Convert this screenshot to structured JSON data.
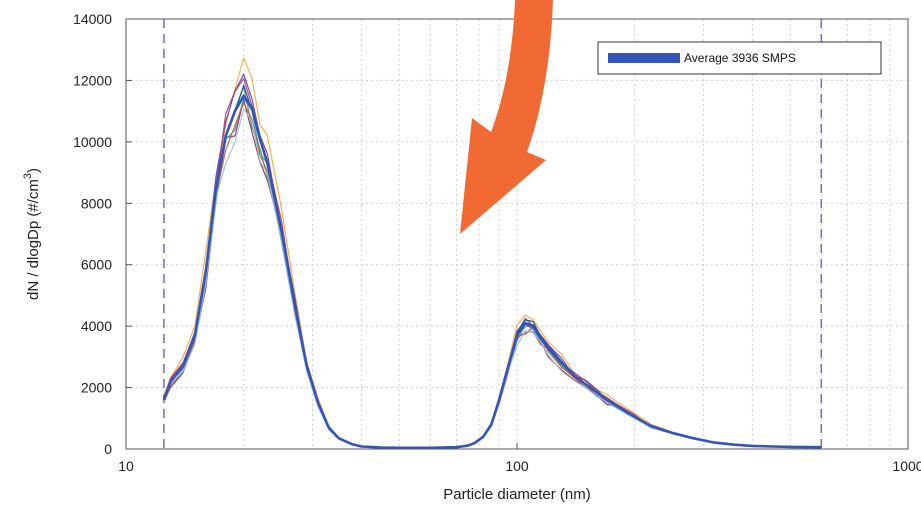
{
  "chart_data": {
    "type": "line",
    "title": "",
    "xlabel": "Particle diameter (nm)",
    "ylabel": "dN / dlogDp (#/cm",
    "ylabel_superscript": "3",
    "ylabel_suffix": ")",
    "xscale": "log",
    "xlim": [
      10,
      1000
    ],
    "ylim": [
      0,
      14000
    ],
    "xticks": [
      10,
      100,
      1000
    ],
    "xtick_labels": [
      "10",
      "100",
      "1000"
    ],
    "yticks": [
      0,
      2000,
      4000,
      6000,
      8000,
      10000,
      12000,
      14000
    ],
    "ytick_labels": [
      "0",
      "2000",
      "4000",
      "6000",
      "8000",
      "10000",
      "12000",
      "14000"
    ],
    "grid": true,
    "legend": {
      "position": "top-right",
      "entries": [
        "Average 3936 SMPS"
      ]
    },
    "vertical_reference_lines_x": [
      12.5,
      600
    ],
    "base_curve": {
      "x": [
        12.5,
        13,
        14,
        15,
        16,
        17,
        18,
        19,
        20,
        21,
        22,
        23,
        25,
        27,
        29,
        31,
        33,
        35,
        38,
        40,
        45,
        50,
        60,
        70,
        75,
        78,
        82,
        86,
        90,
        95,
        100,
        105,
        110,
        115,
        120,
        130,
        140,
        150,
        160,
        170,
        180,
        200,
        220,
        250,
        280,
        320,
        360,
        400,
        450,
        500,
        600
      ],
      "y": [
        1600,
        2200,
        2700,
        3700,
        5800,
        8500,
        10200,
        11000,
        11500,
        11100,
        10100,
        9300,
        7100,
        4700,
        2700,
        1500,
        700,
        350,
        150,
        80,
        50,
        40,
        40,
        60,
        110,
        200,
        400,
        800,
        1600,
        2700,
        3700,
        4100,
        4000,
        3600,
        3300,
        2800,
        2400,
        2100,
        1850,
        1600,
        1400,
        1050,
        750,
        520,
        360,
        210,
        140,
        100,
        80,
        70,
        60
      ]
    },
    "series": [
      {
        "name": "Average 3936 SMPS",
        "color": "#3355bb",
        "scale": 1.0,
        "jitter": 0.0
      },
      {
        "color": "#f2a93b",
        "scale": 1.07,
        "jitter": 0.04
      },
      {
        "color": "#8b2a4a",
        "scale": 0.95,
        "jitter": 0.05
      },
      {
        "color": "#2aa7c9",
        "scale": 0.97,
        "jitter": 0.03
      },
      {
        "color": "#6a3fa0",
        "scale": 1.03,
        "jitter": 0.04
      },
      {
        "color": "#49a64c",
        "scale": 0.99,
        "jitter": 0.05
      },
      {
        "color": "#d2552f",
        "scale": 0.96,
        "jitter": 0.03
      },
      {
        "color": "#1b3f8f",
        "scale": 1.01,
        "jitter": 0.03
      },
      {
        "color": "#8fc3e6",
        "scale": 0.94,
        "jitter": 0.04
      },
      {
        "color": "#a83a7a",
        "scale": 1.02,
        "jitter": 0.05
      }
    ],
    "annotation_arrow": {
      "color": "#f26a33",
      "description": "large orange arrow pointing down-left toward the valley between modes"
    }
  }
}
